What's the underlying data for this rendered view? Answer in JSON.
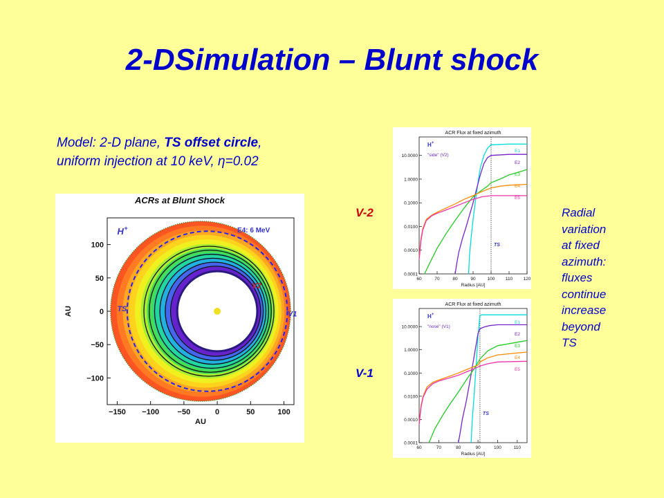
{
  "title": "2-DSimulation – Blunt shock",
  "model": {
    "line1_a": "Model: 2-D plane, ",
    "line1_bold": "TS offset circle",
    "line1_b": ",",
    "line2": "uniform injection at 10 keV, η=0.02"
  },
  "side_note": [
    "Radial",
    "variation",
    "at fixed",
    "azimuth:",
    "fluxes",
    "continue",
    "increase",
    "beyond",
    "TS"
  ],
  "labels": {
    "v2": "V-2",
    "v1": "V-1"
  },
  "colors": {
    "background": "#ffff99",
    "text": "#0000cc",
    "v_label": "#cc0000"
  },
  "chart_data": [
    {
      "type": "heatmap",
      "title": "ACRs at Blunt Shock",
      "xlabel": "AU",
      "ylabel": "AU",
      "xlim": [
        -165,
        115
      ],
      "ylim": [
        -140,
        140
      ],
      "xticks": [
        "−150",
        "−100",
        "−50",
        "0",
        "50",
        "100"
      ],
      "xtick_values": [
        -150,
        -100,
        -50,
        0,
        50,
        100
      ],
      "yticks": [
        "−100",
        "−50",
        "0",
        "50",
        "100"
      ],
      "ytick_values": [
        -100,
        -50,
        0,
        50,
        100
      ],
      "annotations": {
        "species": "H",
        "species_sup": "+",
        "energy": "E4: 6 MeV",
        "ts": "TS",
        "v2": "V2",
        "v1": "V1"
      },
      "outer_boundary": {
        "center": [
          -25,
          0
        ],
        "radius": 135
      },
      "termination_shock": {
        "center": [
          -15,
          0
        ],
        "radius": 120,
        "style": "dashed",
        "color": "#2222ee"
      },
      "inner_boundary": {
        "center": [
          0,
          0
        ],
        "radius": 60
      },
      "sun": [
        0,
        0
      ]
    },
    {
      "type": "line",
      "title": "ACR Flux at fixed azimuth",
      "subtitle": "\"side\" (V2)",
      "species": "H",
      "species_sup": "+",
      "xlabel": "Radius [AU]",
      "ylabel": "",
      "xlim": [
        60,
        120
      ],
      "ylim": [
        0.0001,
        60
      ],
      "yscale": "log",
      "xticks": [
        "60",
        "70",
        "80",
        "90",
        "100",
        "110",
        "120"
      ],
      "xtick_values": [
        60,
        70,
        80,
        90,
        100,
        110,
        120
      ],
      "yticks": [
        "10.0000",
        "1.0000",
        "0.1000",
        "0.0100",
        "0.0010",
        "0.0001"
      ],
      "ytick_values": [
        10,
        1,
        0.1,
        0.01,
        0.001,
        0.0001
      ],
      "ts_line": 100,
      "ts_label": "TS",
      "series": [
        {
          "name": "E1",
          "color": "#00dddd",
          "x": [
            87.5,
            88,
            89,
            90,
            91,
            92,
            93,
            94,
            96,
            98,
            100,
            110,
            120
          ],
          "y": [
            0.0001,
            0.0006,
            0.004,
            0.02,
            0.08,
            0.3,
            1.0,
            3.0,
            10,
            20,
            28,
            30,
            30
          ]
        },
        {
          "name": "E2",
          "color": "#7722cc",
          "x": [
            80,
            81,
            82,
            84,
            86,
            88,
            90,
            92,
            94,
            96,
            98,
            100,
            110,
            120
          ],
          "y": [
            0.0001,
            0.0003,
            0.0008,
            0.003,
            0.009,
            0.03,
            0.1,
            0.4,
            1.5,
            4.5,
            8,
            10,
            11,
            11
          ]
        },
        {
          "name": "E3",
          "color": "#22cc22",
          "x": [
            63,
            66,
            70,
            75,
            80,
            85,
            90,
            95,
            98,
            100,
            105,
            110,
            120
          ],
          "y": [
            0.0001,
            0.0003,
            0.0012,
            0.005,
            0.018,
            0.06,
            0.18,
            0.35,
            0.5,
            0.7,
            1.0,
            1.5,
            2.5
          ]
        },
        {
          "name": "E4",
          "color": "#ff8800",
          "x": [
            60,
            61,
            62,
            64,
            67,
            70,
            75,
            80,
            85,
            90,
            95,
            100,
            105,
            110,
            120
          ],
          "y": [
            0.0005,
            0.003,
            0.008,
            0.02,
            0.03,
            0.04,
            0.06,
            0.09,
            0.14,
            0.2,
            0.3,
            0.42,
            0.5,
            0.55,
            0.6
          ]
        },
        {
          "name": "E5",
          "color": "#ee33aa",
          "x": [
            60,
            61,
            62,
            64,
            67,
            70,
            75,
            80,
            85,
            90,
            95,
            100,
            105,
            110,
            120
          ],
          "y": [
            0.0004,
            0.0025,
            0.007,
            0.018,
            0.028,
            0.036,
            0.05,
            0.07,
            0.1,
            0.14,
            0.18,
            0.2,
            0.2,
            0.2,
            0.2
          ]
        }
      ]
    },
    {
      "type": "line",
      "title": "ACR Flux at fixed azimuth",
      "subtitle": "\"nose\" (V1)",
      "species": "H",
      "species_sup": "+",
      "xlabel": "Radius [AU]",
      "ylabel": "",
      "xlim": [
        60,
        115
      ],
      "ylim": [
        0.0001,
        60
      ],
      "yscale": "log",
      "xticks": [
        "60",
        "70",
        "80",
        "90",
        "100",
        "110"
      ],
      "xtick_values": [
        60,
        70,
        80,
        90,
        100,
        110
      ],
      "yticks": [
        "10.0000",
        "1.0000",
        "0.1000",
        "0.0100",
        "0.0010",
        "0.0001"
      ],
      "ytick_values": [
        10,
        1,
        0.1,
        0.01,
        0.001,
        0.0001
      ],
      "ts_line": 91,
      "ts_label": "TS",
      "series": [
        {
          "name": "E1",
          "color": "#00dddd",
          "x": [
            86.5,
            87,
            88,
            89,
            90,
            91,
            92,
            100,
            115
          ],
          "y": [
            0.0001,
            0.0008,
            0.01,
            0.2,
            4,
            30,
            32,
            32,
            32
          ]
        },
        {
          "name": "E2",
          "color": "#7722cc",
          "x": [
            80,
            81,
            82,
            84,
            86,
            88,
            90,
            91,
            93,
            96,
            100,
            115
          ],
          "y": [
            0.0001,
            0.0003,
            0.001,
            0.006,
            0.05,
            0.5,
            5,
            8,
            9.5,
            11,
            12,
            12
          ]
        },
        {
          "name": "E3",
          "color": "#22cc22",
          "x": [
            65,
            68,
            72,
            76,
            80,
            84,
            88,
            91,
            95,
            100,
            115
          ],
          "y": [
            0.0001,
            0.0004,
            0.0015,
            0.005,
            0.015,
            0.05,
            0.15,
            0.4,
            0.9,
            1.5,
            2.5
          ]
        },
        {
          "name": "E4",
          "color": "#ff8800",
          "x": [
            60,
            61,
            62,
            64,
            67,
            70,
            75,
            80,
            85,
            90,
            91,
            95,
            100,
            115
          ],
          "y": [
            0.0007,
            0.004,
            0.01,
            0.025,
            0.04,
            0.05,
            0.07,
            0.1,
            0.15,
            0.22,
            0.3,
            0.45,
            0.6,
            0.8
          ]
        },
        {
          "name": "E5",
          "color": "#ee33aa",
          "x": [
            60,
            61,
            62,
            64,
            67,
            70,
            75,
            80,
            85,
            90,
            91,
            95,
            100,
            115
          ],
          "y": [
            0.0006,
            0.0035,
            0.009,
            0.02,
            0.035,
            0.045,
            0.06,
            0.08,
            0.12,
            0.18,
            0.2,
            0.25,
            0.3,
            0.32
          ]
        }
      ]
    }
  ]
}
